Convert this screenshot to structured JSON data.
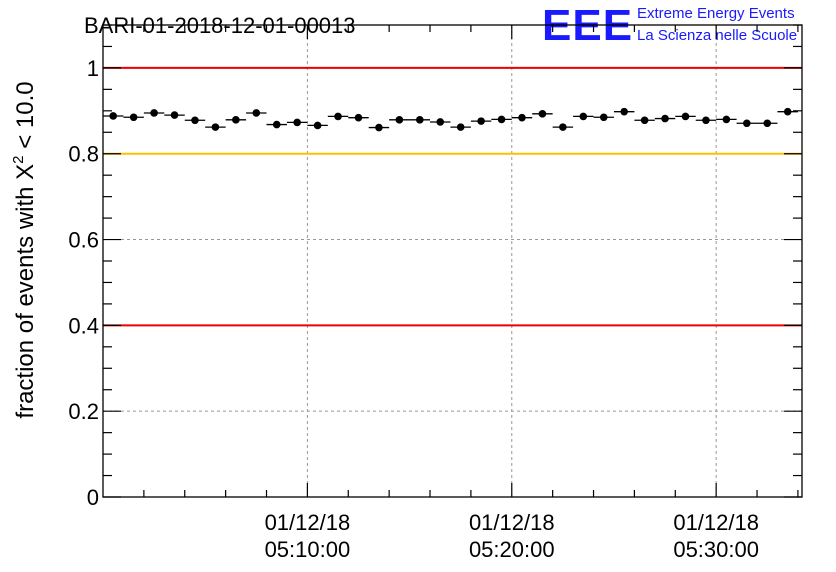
{
  "chart_data": {
    "type": "scatter",
    "title": "BARI-01-2018-12-01-00013",
    "ylabel": "fraction of events with χ² < 10.0",
    "ylabel_parts": {
      "prefix": "fraction of events with ",
      "chi": "X",
      "exp": "2",
      "suffix": " < 10.0"
    },
    "xlabel": "",
    "ylim": [
      0,
      1.1
    ],
    "xlim_minutes": [
      0.0,
      34.2
    ],
    "y_ticks": [
      "0",
      "0.2",
      "0.4",
      "0.6",
      "0.8",
      "1"
    ],
    "x_ticks": [
      {
        "minute": 10,
        "date": "01/12/18",
        "time": "05:10:00"
      },
      {
        "minute": 20,
        "date": "01/12/18",
        "time": "05:20:00"
      },
      {
        "minute": 30,
        "date": "01/12/18",
        "time": "05:30:00"
      }
    ],
    "grid": true,
    "reference_lines": [
      {
        "y": 1.0,
        "color": "#ee0000"
      },
      {
        "y": 0.8,
        "color": "#ffbf00"
      },
      {
        "y": 0.4,
        "color": "#ee0000"
      }
    ],
    "bin_width_minutes": 1.0,
    "series": [
      {
        "name": "fraction",
        "x": [
          0.5,
          1.5,
          2.5,
          3.5,
          4.5,
          5.5,
          6.5,
          7.5,
          8.5,
          9.5,
          10.5,
          11.5,
          12.5,
          13.5,
          14.5,
          15.5,
          16.5,
          17.5,
          18.5,
          19.5,
          20.5,
          21.5,
          22.5,
          23.5,
          24.5,
          25.5,
          26.5,
          27.5,
          28.5,
          29.5,
          30.5,
          31.5,
          32.5,
          33.5
        ],
        "y": [
          0.888,
          0.885,
          0.895,
          0.89,
          0.878,
          0.862,
          0.879,
          0.895,
          0.868,
          0.873,
          0.866,
          0.887,
          0.884,
          0.861,
          0.879,
          0.879,
          0.874,
          0.862,
          0.876,
          0.88,
          0.884,
          0.893,
          0.862,
          0.887,
          0.885,
          0.898,
          0.878,
          0.882,
          0.887,
          0.878,
          0.88,
          0.871,
          0.871,
          0.898
        ]
      }
    ]
  },
  "logo": {
    "mark": "EEE",
    "line1": "Extreme Energy Events",
    "line2": "La Scienza nelle Scuole",
    "color": "#1a1aff"
  }
}
